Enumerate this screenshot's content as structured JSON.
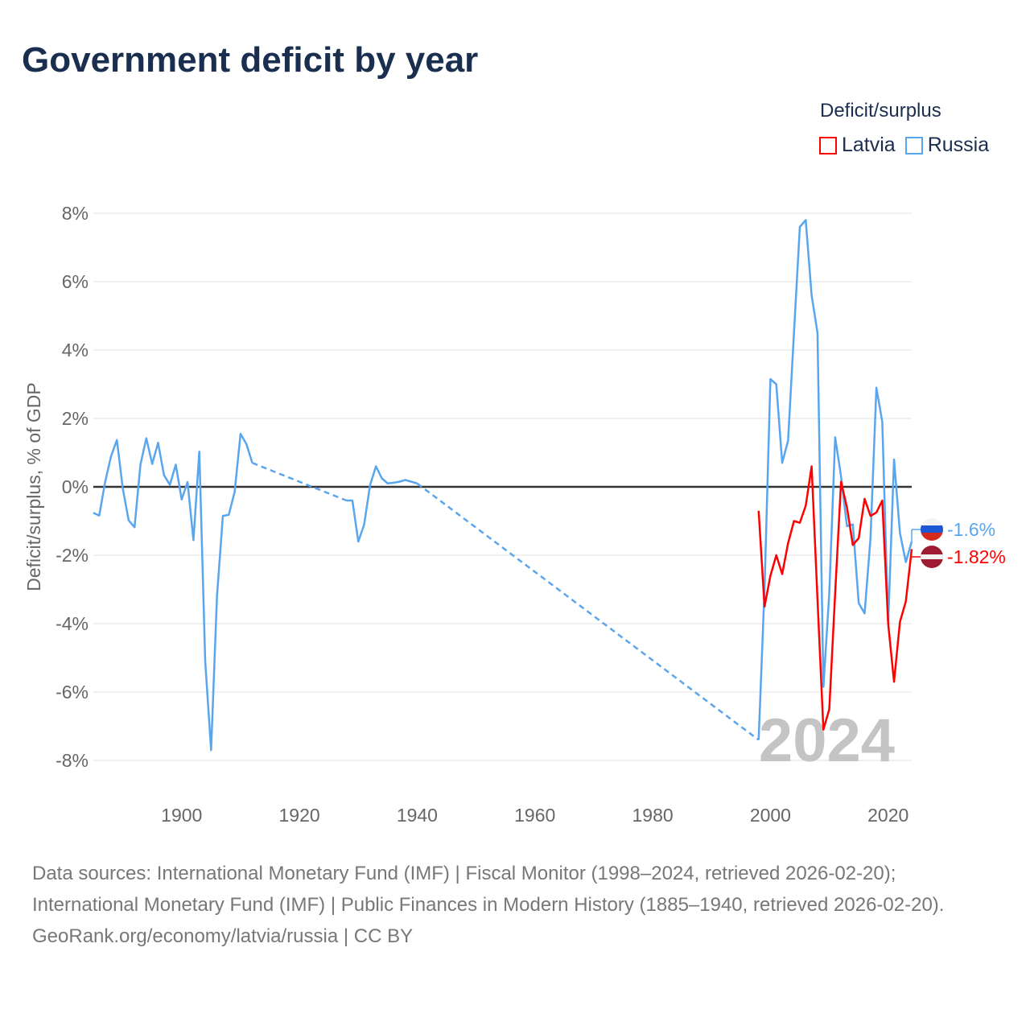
{
  "title": "Government deficit by year",
  "legend": {
    "title": "Deficit/surplus",
    "items": [
      {
        "name": "Latvia",
        "color": "#ff0000"
      },
      {
        "name": "Russia",
        "color": "#5aa6ee"
      }
    ]
  },
  "watermark_year": "2024",
  "end_labels": {
    "russia": "-1.6%",
    "latvia": "-1.82%"
  },
  "footer": {
    "sources": "Data sources: International Monetary Fund (IMF) | Fiscal Monitor (1998–2024, retrieved 2026-02-20); International Monetary Fund (IMF) | Public Finances in Modern History (1885–1940, retrieved 2026-02-20).",
    "credit": "GeoRank.org/economy/latvia/russia | CC BY"
  },
  "chart_data": {
    "type": "line",
    "title": "Government deficit by year",
    "xlabel": "",
    "ylabel": "Deficit/surplus, % of GDP",
    "xlim": [
      1885,
      2024
    ],
    "ylim": [
      -8,
      8
    ],
    "xticks": [
      1900,
      1920,
      1940,
      1960,
      1980,
      2000,
      2020
    ],
    "yticks": [
      8,
      6,
      4,
      2,
      0,
      -2,
      -4,
      -6,
      -8
    ],
    "ytick_labels": [
      "8%",
      "6%",
      "4%",
      "2%",
      "0%",
      "-2%",
      "-4%",
      "-6%",
      "-8%"
    ],
    "grid": true,
    "legend_position": "top-right",
    "series": [
      {
        "name": "Russia",
        "color": "#5aa6ee",
        "x": [
          1885,
          1886,
          1887,
          1888,
          1889,
          1890,
          1891,
          1892,
          1893,
          1894,
          1895,
          1896,
          1897,
          1898,
          1899,
          1900,
          1901,
          1902,
          1903,
          1904,
          1905,
          1906,
          1907,
          1908,
          1909,
          1910,
          1911,
          1912,
          1928,
          1929,
          1930,
          1931,
          1932,
          1933,
          1934,
          1935,
          1936,
          1937,
          1938,
          1939,
          1940,
          1998,
          1999,
          2000,
          2001,
          2002,
          2003,
          2004,
          2005,
          2006,
          2007,
          2008,
          2009,
          2010,
          2011,
          2012,
          2013,
          2014,
          2015,
          2016,
          2017,
          2018,
          2019,
          2020,
          2021,
          2022,
          2023,
          2024
        ],
        "values": [
          -0.76,
          -0.84,
          0.14,
          0.89,
          1.37,
          -0.05,
          -0.98,
          -1.18,
          0.65,
          1.42,
          0.67,
          1.29,
          0.34,
          0.06,
          0.65,
          -0.37,
          0.14,
          -1.56,
          1.03,
          -5.1,
          -7.7,
          -3.2,
          -0.85,
          -0.82,
          -0.15,
          1.55,
          1.25,
          0.7,
          -0.4,
          -0.4,
          -1.6,
          -1.1,
          0.05,
          0.6,
          0.25,
          0.1,
          0.12,
          0.15,
          0.2,
          0.15,
          0.1,
          -7.4,
          -3.0,
          3.15,
          3.0,
          0.7,
          1.35,
          4.5,
          7.6,
          7.8,
          5.6,
          4.5,
          -5.85,
          -3.1,
          1.45,
          0.3,
          -1.15,
          -1.1,
          -3.4,
          -3.7,
          -1.5,
          2.9,
          1.9,
          -4.0,
          0.8,
          -1.35,
          -2.2,
          -1.6
        ]
      },
      {
        "name": "Latvia",
        "color": "#ff0000",
        "x": [
          1998,
          1999,
          2000,
          2001,
          2002,
          2003,
          2004,
          2005,
          2006,
          2007,
          2008,
          2009,
          2010,
          2011,
          2012,
          2013,
          2014,
          2015,
          2016,
          2017,
          2018,
          2019,
          2020,
          2021,
          2022,
          2023,
          2024
        ],
        "values": [
          -0.7,
          -3.5,
          -2.6,
          -2.0,
          -2.55,
          -1.65,
          -1.0,
          -1.05,
          -0.55,
          0.6,
          -3.3,
          -7.1,
          -6.5,
          -3.1,
          0.15,
          -0.6,
          -1.7,
          -1.5,
          -0.35,
          -0.85,
          -0.75,
          -0.4,
          -4.0,
          -5.7,
          -3.95,
          -3.35,
          -1.82
        ]
      }
    ]
  }
}
